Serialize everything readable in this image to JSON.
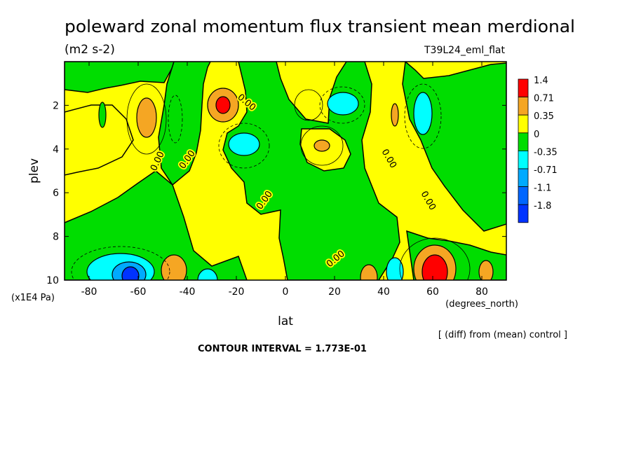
{
  "chart_data": {
    "type": "heatmap",
    "title": "poleward zonal momentum flux transient mean merdional",
    "units": "(m2 s-2)",
    "run_label": "T39L24_eml_flat",
    "xlabel": "lat",
    "xunits": "(degrees_north)",
    "ylabel": "plev",
    "yunits": "(x1E4 Pa)",
    "xlim": [
      -90,
      90
    ],
    "ylim": [
      10,
      0
    ],
    "xticks": [
      -80,
      -60,
      -40,
      -20,
      0,
      20,
      40,
      60,
      80
    ],
    "yticks": [
      2,
      4,
      6,
      8,
      10
    ],
    "contour_labels": [
      "0.00",
      "0.00",
      "0.00",
      "0.00",
      "0.00",
      "0.00",
      "0.00"
    ],
    "note": "[ (diff) from (mean) control ]",
    "contour_interval": "CONTOUR INTERVAL = 1.773E-01",
    "legend": {
      "placement": "right",
      "levels": [
        {
          "label": "1.4",
          "color": "#ff0000"
        },
        {
          "label": "0.71",
          "color": "#f5a623"
        },
        {
          "label": "0.35",
          "color": "#ffff00"
        },
        {
          "label": "0",
          "color": "#00dd00"
        },
        {
          "label": "-0.35",
          "color": "#00ffff"
        },
        {
          "label": "-0.71",
          "color": "#00aaff"
        },
        {
          "label": "-1.1",
          "color": "#0066ff"
        },
        {
          "label": "-1.8",
          "color": "#0033ff"
        }
      ]
    },
    "features": [
      {
        "lat": -75,
        "plev": 2.5,
        "sign": "negative",
        "level": "green"
      },
      {
        "lat": -57,
        "plev": 2.6,
        "sign": "positive",
        "level": "orange"
      },
      {
        "lat": -25,
        "plev": 2.2,
        "sign": "positive",
        "level": "red"
      },
      {
        "lat": -18,
        "plev": 4.0,
        "sign": "negative",
        "level": "cyan"
      },
      {
        "lat": 15,
        "plev": 4.0,
        "sign": "positive",
        "level": "orange"
      },
      {
        "lat": 27,
        "plev": 2.0,
        "sign": "negative",
        "level": "cyan"
      },
      {
        "lat": 45,
        "plev": 2.5,
        "sign": "positive",
        "level": "orange"
      },
      {
        "lat": 55,
        "plev": 2.8,
        "sign": "negative",
        "level": "cyan"
      },
      {
        "lat": -62,
        "plev": 9.4,
        "sign": "negative",
        "level": "blue"
      },
      {
        "lat": -45,
        "plev": 9.4,
        "sign": "positive",
        "level": "orange"
      },
      {
        "lat": -33,
        "plev": 9.8,
        "sign": "negative",
        "level": "cyan"
      },
      {
        "lat": 33,
        "plev": 9.6,
        "sign": "positive",
        "level": "orange"
      },
      {
        "lat": 43,
        "plev": 9.3,
        "sign": "negative",
        "level": "cyan"
      },
      {
        "lat": 60,
        "plev": 9.3,
        "sign": "positive",
        "level": "red"
      },
      {
        "lat": 80,
        "plev": 9.6,
        "sign": "positive",
        "level": "orange"
      }
    ]
  }
}
